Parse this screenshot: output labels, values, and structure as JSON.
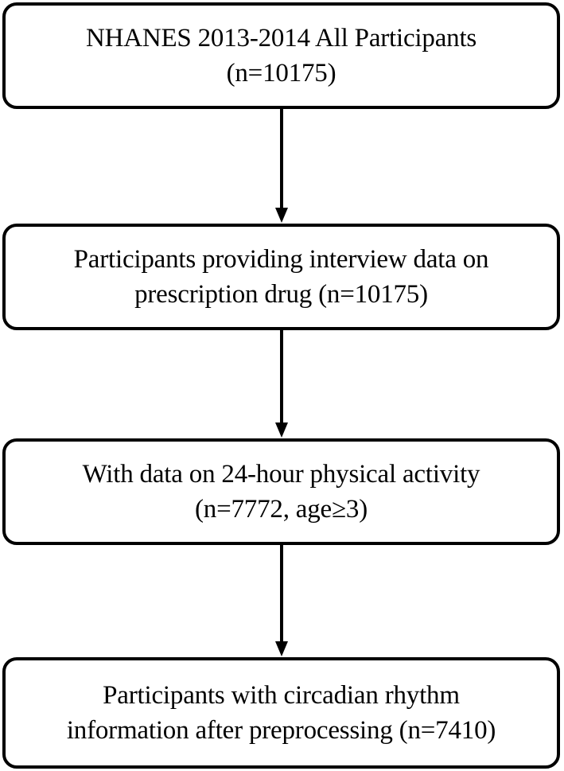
{
  "flowchart": {
    "steps": [
      {
        "line1": "NHANES 2013-2014 All Participants",
        "line2": "(n=10175)"
      },
      {
        "line1": "Participants providing interview data on",
        "line2": "prescription drug (n=10175)"
      },
      {
        "line1": "With data on 24-hour physical activity",
        "line2": "(n=7772, age≥3)"
      },
      {
        "line1": "Participants with circadian rhythm",
        "line2": "information after preprocessing (n=7410)"
      }
    ],
    "colors": {
      "border": "#000000",
      "arrow": "#000000",
      "background": "#ffffff"
    }
  }
}
